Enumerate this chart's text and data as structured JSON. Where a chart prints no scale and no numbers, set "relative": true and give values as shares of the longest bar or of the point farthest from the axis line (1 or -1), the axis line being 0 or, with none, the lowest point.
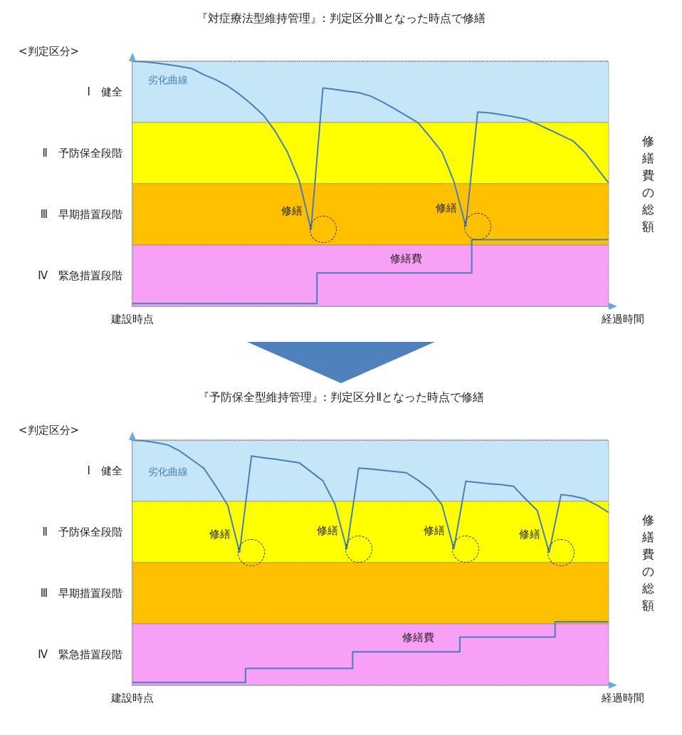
{
  "chart_data": [
    {
      "type": "line",
      "title": "『対症療法型維持管理』: 判定区分Ⅲとなった時点で修繕",
      "ylabel": "<判定区分>",
      "xlabel": "経過時間",
      "relative": true,
      "grid": false,
      "legend": false,
      "marker": "none",
      "categories": [
        null,
        null,
        null,
        null,
        null,
        null,
        null,
        null,
        null,
        null,
        null,
        null,
        null,
        null,
        null,
        null,
        null,
        null,
        null,
        null,
        null,
        null,
        null,
        null,
        null,
        null,
        null,
        null,
        null,
        null,
        null,
        null,
        null,
        null,
        null,
        null,
        null,
        null,
        null,
        null,
        null
      ],
      "series": [
        {
          "name": "劣化曲線",
          "color": "#4a7ebb",
          "values": [
            1,
            0.998,
            0.993,
            0.986,
            0.979,
            0.97,
            0.945,
            0.925,
            0.899,
            0.865,
            0.825,
            0.78,
            0.714,
            0.631,
            0.515,
            0.313,
            0.891,
            0.885,
            0.878,
            0.872,
            0.858,
            0.834,
            0.806,
            0.778,
            0.749,
            0.691,
            0.63,
            0.51,
            0.326,
            0.793,
            0.789,
            0.782,
            0.774,
            0.764,
            0.744,
            0.721,
            0.698,
            0.675,
            0.628,
            0.565,
            0.503
          ]
        },
        {
          "name": "修繕費",
          "type": "step",
          "color": "#4a7ebb",
          "values": [
            0.011,
            0.011,
            0.011,
            0.011,
            0.011,
            0.011,
            0.011,
            0.011,
            0.011,
            0.011,
            0.011,
            0.011,
            0.011,
            0.011,
            0.011,
            0.011,
            0.136,
            0.136,
            0.136,
            0.136,
            0.136,
            0.136,
            0.136,
            0.136,
            0.136,
            0.136,
            0.136,
            0.136,
            0.136,
            0.272,
            0.272,
            0.272,
            0.272,
            0.272,
            0.272,
            0.272,
            0.272,
            0.272,
            0.272,
            0.272,
            0.272
          ]
        }
      ],
      "bands": [
        {
          "axis": "y",
          "from": 0.75,
          "to": 1,
          "label": "Ⅰ　健全",
          "color": "#c5e6f6"
        },
        {
          "axis": "y",
          "from": 0.5,
          "to": 0.75,
          "label": "Ⅱ　予防保全段階",
          "color": "#ffff00"
        },
        {
          "axis": "y",
          "from": 0.25,
          "to": 0.5,
          "label": "Ⅲ　早期措置段階",
          "color": "#ffc000"
        },
        {
          "axis": "y",
          "from": 0,
          "to": 0.25,
          "label": "Ⅳ　緊急措置段階",
          "color": "#f8a0f5"
        }
      ],
      "ref_lines": [
        {
          "axis": "y",
          "value": 1,
          "color": "#808080",
          "line_style": "dotted"
        }
      ],
      "annotations": [
        "建設時点",
        "修繕費の総額",
        "修繕",
        "修繕"
      ]
    },
    {
      "type": "line",
      "title": "『予防保全型維持管理』: 判定区分Ⅱとなった時点で修繕",
      "ylabel": "<判定区分>",
      "xlabel": "経過時間",
      "relative": true,
      "grid": false,
      "legend": false,
      "marker": "none",
      "categories": [
        null,
        null,
        null,
        null,
        null,
        null,
        null,
        null,
        null,
        null,
        null,
        null,
        null,
        null,
        null,
        null,
        null,
        null,
        null,
        null,
        null,
        null,
        null,
        null,
        null,
        null,
        null,
        null,
        null,
        null,
        null,
        null,
        null,
        null,
        null,
        null,
        null,
        null,
        null,
        null,
        null
      ],
      "series": [
        {
          "name": "劣化曲線",
          "color": "#4a7ebb",
          "values": [
            1,
            0.997,
            0.99,
            0.98,
            0.955,
            0.92,
            0.885,
            0.813,
            0.735,
            0.542,
            0.935,
            0.928,
            0.922,
            0.915,
            0.908,
            0.871,
            0.834,
            0.74,
            0.556,
            0.886,
            0.882,
            0.877,
            0.872,
            0.867,
            0.836,
            0.799,
            0.736,
            0.556,
            0.832,
            0.827,
            0.822,
            0.818,
            0.812,
            0.761,
            0.713,
            0.542,
            0.778,
            0.772,
            0.76,
            0.735,
            0.705
          ]
        },
        {
          "name": "修繕費",
          "type": "step",
          "color": "#4a7ebb",
          "values": [
            0.011,
            0.011,
            0.011,
            0.011,
            0.011,
            0.011,
            0.011,
            0.011,
            0.011,
            0.011,
            0.068,
            0.068,
            0.068,
            0.068,
            0.068,
            0.068,
            0.068,
            0.068,
            0.068,
            0.136,
            0.136,
            0.136,
            0.136,
            0.136,
            0.136,
            0.136,
            0.136,
            0.136,
            0.196,
            0.196,
            0.196,
            0.196,
            0.196,
            0.196,
            0.196,
            0.196,
            0.259,
            0.259,
            0.259,
            0.259,
            0.259
          ]
        }
      ],
      "bands": [
        {
          "axis": "y",
          "from": 0.75,
          "to": 1,
          "label": "Ⅰ　健全",
          "color": "#c5e6f6"
        },
        {
          "axis": "y",
          "from": 0.5,
          "to": 0.75,
          "label": "Ⅱ　予防保全段階",
          "color": "#ffff00"
        },
        {
          "axis": "y",
          "from": 0.25,
          "to": 0.5,
          "label": "Ⅲ　早期措置段階",
          "color": "#ffc000"
        },
        {
          "axis": "y",
          "from": 0,
          "to": 0.25,
          "label": "Ⅳ　緊急措置段階",
          "color": "#f8a0f5"
        }
      ],
      "ref_lines": [
        {
          "axis": "y",
          "value": 1,
          "color": "#808080",
          "line_style": "dotted"
        }
      ],
      "annotations": [
        "建設時点",
        "修繕費の総額",
        "修繕",
        "修繕",
        "修繕",
        "修繕"
      ]
    }
  ]
}
